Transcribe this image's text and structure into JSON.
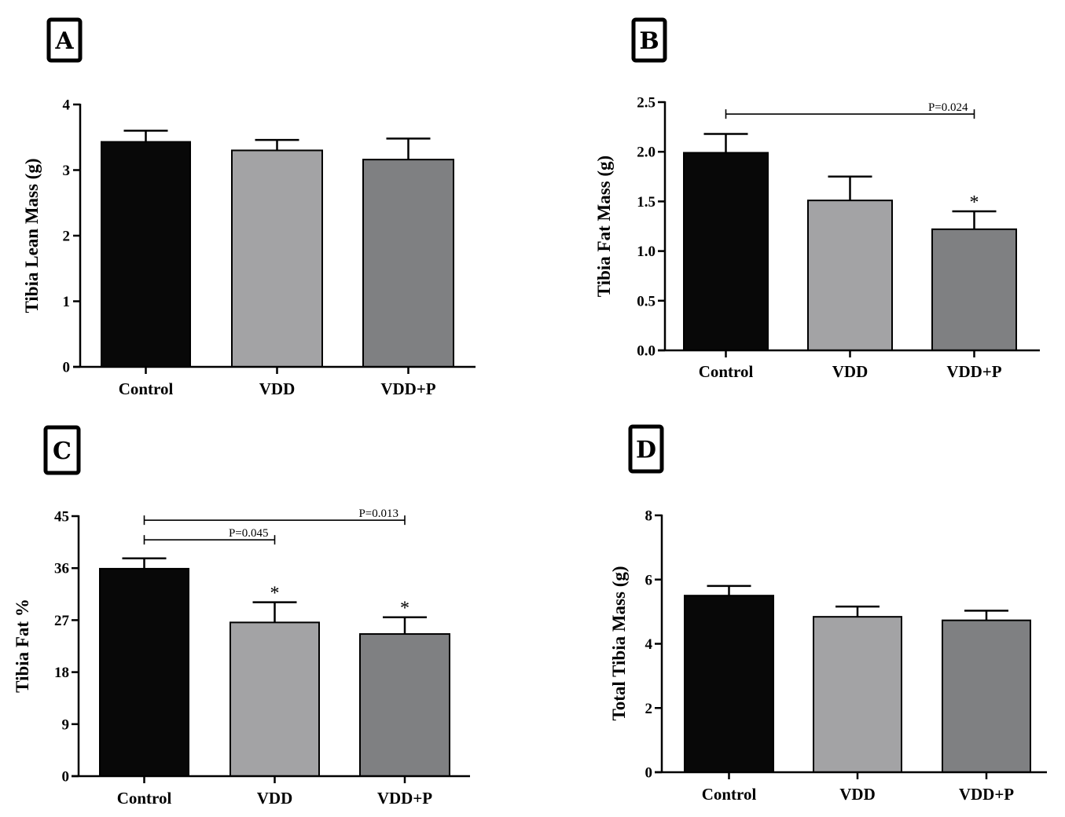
{
  "chart_data": [
    {
      "panel": "A",
      "type": "bar",
      "categories": [
        "Control",
        "VDD",
        "VDD+P"
      ],
      "values": [
        3.43,
        3.3,
        3.16
      ],
      "errors": [
        0.17,
        0.16,
        0.32
      ],
      "ylabel": "Tibia Lean Mass (g)",
      "ylim": [
        0,
        4
      ],
      "yticks": [
        0,
        1,
        2,
        3,
        4
      ],
      "yticklabels": [
        "0",
        "1",
        "2",
        "3",
        "4"
      ],
      "colors": [
        "#080808",
        "#a3a3a5",
        "#7f8082"
      ],
      "stars": [],
      "comparisons": []
    },
    {
      "panel": "B",
      "type": "bar",
      "categories": [
        "Control",
        "VDD",
        "VDD+P"
      ],
      "values": [
        1.99,
        1.51,
        1.22
      ],
      "errors": [
        0.19,
        0.24,
        0.18
      ],
      "ylabel": "Tibia Fat Mass (g)",
      "ylim": [
        0,
        2.5
      ],
      "yticks": [
        0,
        0.5,
        1,
        1.5,
        2,
        2.5
      ],
      "yticklabels": [
        "0.0",
        "0.5",
        "1.0",
        "1.5",
        "2.0",
        "2.5"
      ],
      "colors": [
        "#080808",
        "#a3a3a5",
        "#7f8082"
      ],
      "stars": [
        2
      ],
      "comparisons": [
        {
          "from": 0,
          "to": 2,
          "label": "P=0.024",
          "y": 2.38
        }
      ]
    },
    {
      "panel": "C",
      "type": "bar",
      "categories": [
        "Control",
        "VDD",
        "VDD+P"
      ],
      "values": [
        35.9,
        26.6,
        24.6
      ],
      "errors": [
        1.8,
        3.5,
        2.9
      ],
      "ylabel": "Tibia Fat %",
      "ylim": [
        0,
        45
      ],
      "yticks": [
        0,
        9,
        18,
        27,
        36,
        45
      ],
      "yticklabels": [
        "0",
        "9",
        "18",
        "27",
        "36",
        "45"
      ],
      "colors": [
        "#080808",
        "#a3a3a5",
        "#7f8082"
      ],
      "stars": [
        1,
        2
      ],
      "comparisons": [
        {
          "from": 0,
          "to": 2,
          "label": "P=0.013",
          "y": 44.3
        },
        {
          "from": 0,
          "to": 1,
          "label": "P=0.045",
          "y": 40.9
        }
      ]
    },
    {
      "panel": "D",
      "type": "bar",
      "categories": [
        "Control",
        "VDD",
        "VDD+P"
      ],
      "values": [
        5.5,
        4.84,
        4.73
      ],
      "errors": [
        0.3,
        0.32,
        0.3
      ],
      "ylabel": "Total Tibia Mass (g)",
      "ylim": [
        0,
        8
      ],
      "yticks": [
        0,
        2,
        4,
        6,
        8
      ],
      "yticklabels": [
        "0",
        "2",
        "4",
        "6",
        "8"
      ],
      "colors": [
        "#080808",
        "#a3a3a5",
        "#7f8082"
      ],
      "stars": [],
      "comparisons": []
    }
  ]
}
